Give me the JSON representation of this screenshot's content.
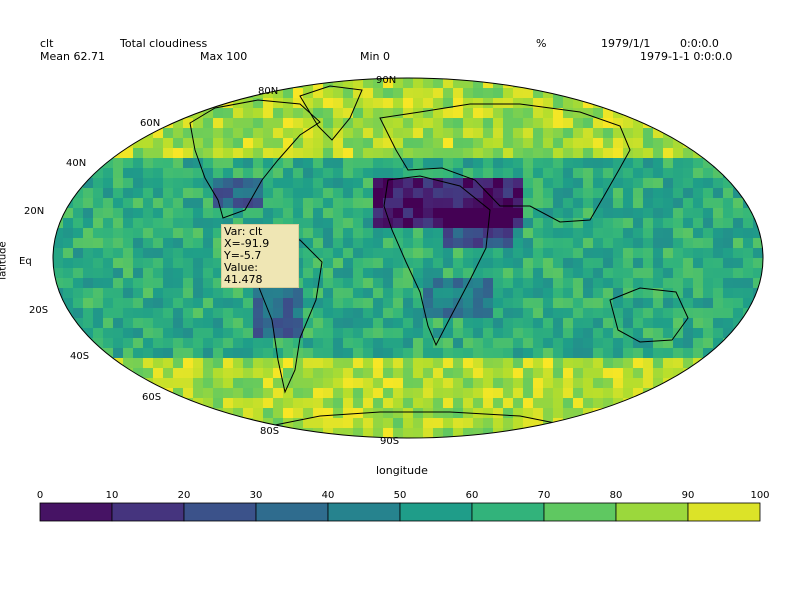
{
  "header": {
    "var_name": "clt",
    "long_name": "Total cloudiness",
    "units": "%",
    "date": "1979/1/1",
    "time": "0:0:0.0",
    "datetime": "1979-1-1 0:0:0.0",
    "mean_label": "Mean 62.71",
    "max_label": "Max 100",
    "min_label": "Min 0"
  },
  "axes": {
    "xlabel": "longitude",
    "ylabel": "latitude",
    "lat_ticks": [
      "90N",
      "80N",
      "60N",
      "40N",
      "20N",
      "Eq",
      "20S",
      "40S",
      "60S",
      "80S",
      "90S"
    ]
  },
  "tooltip": {
    "line1": "Var: clt",
    "line2": "X=-91.9",
    "line3": "Y=-5.7",
    "line4": "Value: 41.478"
  },
  "colorbar": {
    "ticks": [
      "0",
      "10",
      "20",
      "30",
      "40",
      "50",
      "60",
      "70",
      "80",
      "90",
      "100"
    ],
    "colormap": "viridis",
    "min": 0,
    "max": 100
  },
  "map": {
    "projection": "mollweide",
    "colors": {
      "low": "#440154",
      "mid": "#21918c",
      "high": "#fde725"
    }
  }
}
